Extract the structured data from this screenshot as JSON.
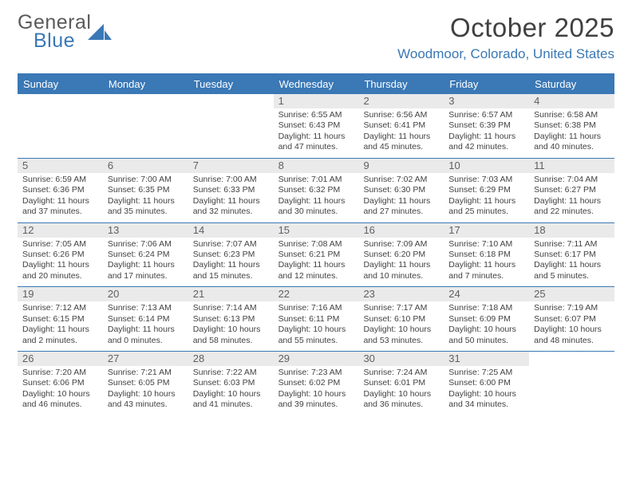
{
  "brand": {
    "word1": "General",
    "word2": "Blue",
    "colors": {
      "gray": "#5a5a5a",
      "blue": "#3a78b6"
    }
  },
  "title": "October 2025",
  "location": "Woodmoor, Colorado, United States",
  "header_bg": "#3a78b6",
  "header_fg": "#ffffff",
  "day_num_bg": "#eaeaea",
  "border_color": "#3a78b6",
  "days_of_week": [
    "Sunday",
    "Monday",
    "Tuesday",
    "Wednesday",
    "Thursday",
    "Friday",
    "Saturday"
  ],
  "weeks": [
    [
      {
        "n": "",
        "sr": "",
        "ss": "",
        "dl": ""
      },
      {
        "n": "",
        "sr": "",
        "ss": "",
        "dl": ""
      },
      {
        "n": "",
        "sr": "",
        "ss": "",
        "dl": ""
      },
      {
        "n": "1",
        "sr": "Sunrise: 6:55 AM",
        "ss": "Sunset: 6:43 PM",
        "dl": "Daylight: 11 hours and 47 minutes."
      },
      {
        "n": "2",
        "sr": "Sunrise: 6:56 AM",
        "ss": "Sunset: 6:41 PM",
        "dl": "Daylight: 11 hours and 45 minutes."
      },
      {
        "n": "3",
        "sr": "Sunrise: 6:57 AM",
        "ss": "Sunset: 6:39 PM",
        "dl": "Daylight: 11 hours and 42 minutes."
      },
      {
        "n": "4",
        "sr": "Sunrise: 6:58 AM",
        "ss": "Sunset: 6:38 PM",
        "dl": "Daylight: 11 hours and 40 minutes."
      }
    ],
    [
      {
        "n": "5",
        "sr": "Sunrise: 6:59 AM",
        "ss": "Sunset: 6:36 PM",
        "dl": "Daylight: 11 hours and 37 minutes."
      },
      {
        "n": "6",
        "sr": "Sunrise: 7:00 AM",
        "ss": "Sunset: 6:35 PM",
        "dl": "Daylight: 11 hours and 35 minutes."
      },
      {
        "n": "7",
        "sr": "Sunrise: 7:00 AM",
        "ss": "Sunset: 6:33 PM",
        "dl": "Daylight: 11 hours and 32 minutes."
      },
      {
        "n": "8",
        "sr": "Sunrise: 7:01 AM",
        "ss": "Sunset: 6:32 PM",
        "dl": "Daylight: 11 hours and 30 minutes."
      },
      {
        "n": "9",
        "sr": "Sunrise: 7:02 AM",
        "ss": "Sunset: 6:30 PM",
        "dl": "Daylight: 11 hours and 27 minutes."
      },
      {
        "n": "10",
        "sr": "Sunrise: 7:03 AM",
        "ss": "Sunset: 6:29 PM",
        "dl": "Daylight: 11 hours and 25 minutes."
      },
      {
        "n": "11",
        "sr": "Sunrise: 7:04 AM",
        "ss": "Sunset: 6:27 PM",
        "dl": "Daylight: 11 hours and 22 minutes."
      }
    ],
    [
      {
        "n": "12",
        "sr": "Sunrise: 7:05 AM",
        "ss": "Sunset: 6:26 PM",
        "dl": "Daylight: 11 hours and 20 minutes."
      },
      {
        "n": "13",
        "sr": "Sunrise: 7:06 AM",
        "ss": "Sunset: 6:24 PM",
        "dl": "Daylight: 11 hours and 17 minutes."
      },
      {
        "n": "14",
        "sr": "Sunrise: 7:07 AM",
        "ss": "Sunset: 6:23 PM",
        "dl": "Daylight: 11 hours and 15 minutes."
      },
      {
        "n": "15",
        "sr": "Sunrise: 7:08 AM",
        "ss": "Sunset: 6:21 PM",
        "dl": "Daylight: 11 hours and 12 minutes."
      },
      {
        "n": "16",
        "sr": "Sunrise: 7:09 AM",
        "ss": "Sunset: 6:20 PM",
        "dl": "Daylight: 11 hours and 10 minutes."
      },
      {
        "n": "17",
        "sr": "Sunrise: 7:10 AM",
        "ss": "Sunset: 6:18 PM",
        "dl": "Daylight: 11 hours and 7 minutes."
      },
      {
        "n": "18",
        "sr": "Sunrise: 7:11 AM",
        "ss": "Sunset: 6:17 PM",
        "dl": "Daylight: 11 hours and 5 minutes."
      }
    ],
    [
      {
        "n": "19",
        "sr": "Sunrise: 7:12 AM",
        "ss": "Sunset: 6:15 PM",
        "dl": "Daylight: 11 hours and 2 minutes."
      },
      {
        "n": "20",
        "sr": "Sunrise: 7:13 AM",
        "ss": "Sunset: 6:14 PM",
        "dl": "Daylight: 11 hours and 0 minutes."
      },
      {
        "n": "21",
        "sr": "Sunrise: 7:14 AM",
        "ss": "Sunset: 6:13 PM",
        "dl": "Daylight: 10 hours and 58 minutes."
      },
      {
        "n": "22",
        "sr": "Sunrise: 7:16 AM",
        "ss": "Sunset: 6:11 PM",
        "dl": "Daylight: 10 hours and 55 minutes."
      },
      {
        "n": "23",
        "sr": "Sunrise: 7:17 AM",
        "ss": "Sunset: 6:10 PM",
        "dl": "Daylight: 10 hours and 53 minutes."
      },
      {
        "n": "24",
        "sr": "Sunrise: 7:18 AM",
        "ss": "Sunset: 6:09 PM",
        "dl": "Daylight: 10 hours and 50 minutes."
      },
      {
        "n": "25",
        "sr": "Sunrise: 7:19 AM",
        "ss": "Sunset: 6:07 PM",
        "dl": "Daylight: 10 hours and 48 minutes."
      }
    ],
    [
      {
        "n": "26",
        "sr": "Sunrise: 7:20 AM",
        "ss": "Sunset: 6:06 PM",
        "dl": "Daylight: 10 hours and 46 minutes."
      },
      {
        "n": "27",
        "sr": "Sunrise: 7:21 AM",
        "ss": "Sunset: 6:05 PM",
        "dl": "Daylight: 10 hours and 43 minutes."
      },
      {
        "n": "28",
        "sr": "Sunrise: 7:22 AM",
        "ss": "Sunset: 6:03 PM",
        "dl": "Daylight: 10 hours and 41 minutes."
      },
      {
        "n": "29",
        "sr": "Sunrise: 7:23 AM",
        "ss": "Sunset: 6:02 PM",
        "dl": "Daylight: 10 hours and 39 minutes."
      },
      {
        "n": "30",
        "sr": "Sunrise: 7:24 AM",
        "ss": "Sunset: 6:01 PM",
        "dl": "Daylight: 10 hours and 36 minutes."
      },
      {
        "n": "31",
        "sr": "Sunrise: 7:25 AM",
        "ss": "Sunset: 6:00 PM",
        "dl": "Daylight: 10 hours and 34 minutes."
      },
      {
        "n": "",
        "sr": "",
        "ss": "",
        "dl": ""
      }
    ]
  ]
}
